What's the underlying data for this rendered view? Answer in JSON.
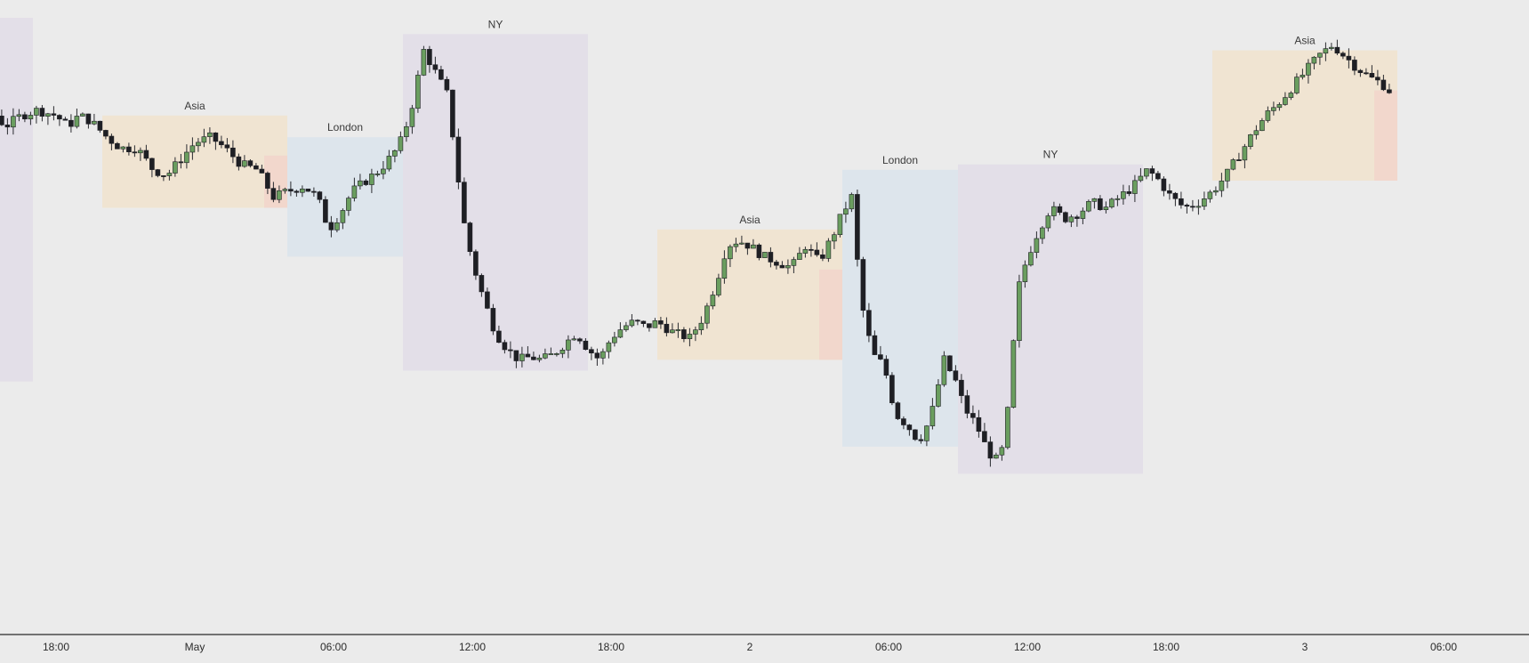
{
  "chart_data": {
    "type": "candlestick",
    "title": "",
    "xlabel": "",
    "ylabel": "",
    "grid": false,
    "ylim": [
      0,
      100
    ],
    "x_ticks": [
      "18:00",
      "May",
      "06:00",
      "12:00",
      "18:00",
      "2",
      "06:00",
      "12:00",
      "18:00",
      "3",
      "06:00"
    ],
    "x_tick_hours": [
      0,
      6,
      12,
      18,
      24,
      30,
      36,
      42,
      48,
      54,
      60
    ],
    "sessions": [
      {
        "name": "",
        "kind": "ny",
        "start_hour": -8.5,
        "end_hour": -1.0,
        "low": 33,
        "high": 100
      },
      {
        "name": "Asia",
        "kind": "asia",
        "start_hour": 2.0,
        "end_hour": 10.0,
        "low": 65,
        "high": 82
      },
      {
        "name": "London",
        "kind": "london",
        "start_hour": 10.0,
        "end_hour": 15.0,
        "low": 56,
        "high": 78
      },
      {
        "name": "NY",
        "kind": "ny",
        "start_hour": 15.0,
        "end_hour": 23.0,
        "low": 35,
        "high": 97
      },
      {
        "name": "Asia",
        "kind": "asia",
        "start_hour": 26.0,
        "end_hour": 34.0,
        "low": 37,
        "high": 61
      },
      {
        "name": "London",
        "kind": "london",
        "start_hour": 34.0,
        "end_hour": 39.0,
        "low": 21,
        "high": 72
      },
      {
        "name": "NY",
        "kind": "ny",
        "start_hour": 39.0,
        "end_hour": 47.0,
        "low": 16,
        "high": 73
      },
      {
        "name": "Asia",
        "kind": "asia",
        "start_hour": 50.0,
        "end_hour": 58.0,
        "low": 70,
        "high": 94
      }
    ],
    "price_path": [
      [
        -8.1,
        40
      ],
      [
        -7.0,
        78
      ],
      [
        -6.0,
        93
      ],
      [
        -5.3,
        97
      ],
      [
        -4.5,
        94
      ],
      [
        -3.7,
        89
      ],
      [
        -3.0,
        84
      ],
      [
        -2.2,
        80
      ],
      [
        -1.5,
        82
      ],
      [
        -0.8,
        83
      ],
      [
        0.0,
        82
      ],
      [
        0.5,
        80
      ],
      [
        1.0,
        82
      ],
      [
        1.5,
        81
      ],
      [
        2.2,
        78
      ],
      [
        2.8,
        76
      ],
      [
        3.5,
        76
      ],
      [
        4.2,
        72
      ],
      [
        4.8,
        71
      ],
      [
        5.4,
        74
      ],
      [
        6.0,
        77
      ],
      [
        6.7,
        78
      ],
      [
        7.3,
        76
      ],
      [
        8.0,
        73
      ],
      [
        8.7,
        72
      ],
      [
        9.4,
        67
      ],
      [
        10.0,
        68
      ],
      [
        10.7,
        69
      ],
      [
        11.3,
        67
      ],
      [
        11.8,
        61
      ],
      [
        12.3,
        64
      ],
      [
        12.8,
        68
      ],
      [
        13.4,
        70
      ],
      [
        14.0,
        72
      ],
      [
        14.6,
        75
      ],
      [
        15.0,
        78
      ],
      [
        15.4,
        84
      ],
      [
        15.9,
        94
      ],
      [
        16.4,
        90
      ],
      [
        16.9,
        86
      ],
      [
        17.2,
        77
      ],
      [
        17.6,
        63
      ],
      [
        18.0,
        55
      ],
      [
        18.5,
        48
      ],
      [
        19.0,
        42
      ],
      [
        19.5,
        39
      ],
      [
        20.0,
        37
      ],
      [
        20.5,
        37.5
      ],
      [
        21.0,
        37
      ],
      [
        21.5,
        38
      ],
      [
        22.0,
        40
      ],
      [
        22.5,
        42
      ],
      [
        23.0,
        39
      ],
      [
        23.5,
        37
      ],
      [
        24.0,
        41
      ],
      [
        24.5,
        43
      ],
      [
        25.0,
        44
      ],
      [
        25.5,
        43
      ],
      [
        26.0,
        44
      ],
      [
        26.7,
        42
      ],
      [
        27.4,
        41
      ],
      [
        28.0,
        45
      ],
      [
        28.6,
        52
      ],
      [
        29.0,
        58
      ],
      [
        29.5,
        59
      ],
      [
        30.0,
        58
      ],
      [
        30.6,
        56
      ],
      [
        31.2,
        55
      ],
      [
        31.8,
        54
      ],
      [
        32.4,
        58
      ],
      [
        33.0,
        55
      ],
      [
        33.6,
        60
      ],
      [
        34.0,
        64
      ],
      [
        34.4,
        67
      ],
      [
        34.8,
        48
      ],
      [
        35.3,
        38
      ],
      [
        35.8,
        36
      ],
      [
        36.3,
        27
      ],
      [
        36.8,
        25
      ],
      [
        37.3,
        22
      ],
      [
        37.8,
        26
      ],
      [
        38.4,
        37
      ],
      [
        38.9,
        33
      ],
      [
        39.3,
        28
      ],
      [
        39.8,
        25
      ],
      [
        40.3,
        20
      ],
      [
        40.8,
        18
      ],
      [
        41.1,
        25
      ],
      [
        41.6,
        50
      ],
      [
        42.0,
        56
      ],
      [
        42.5,
        61
      ],
      [
        43.0,
        65
      ],
      [
        43.6,
        63
      ],
      [
        44.2,
        64
      ],
      [
        44.8,
        66
      ],
      [
        45.4,
        65
      ],
      [
        46.0,
        67
      ],
      [
        46.6,
        69
      ],
      [
        47.2,
        72
      ],
      [
        47.7,
        70
      ],
      [
        48.2,
        67
      ],
      [
        48.8,
        65
      ],
      [
        49.4,
        66
      ],
      [
        50.0,
        68
      ],
      [
        50.6,
        71
      ],
      [
        51.2,
        75
      ],
      [
        51.8,
        79
      ],
      [
        52.3,
        82
      ],
      [
        52.8,
        84
      ],
      [
        53.4,
        87
      ],
      [
        54.0,
        90
      ],
      [
        54.6,
        93
      ],
      [
        55.2,
        95
      ],
      [
        55.7,
        93
      ],
      [
        56.2,
        91
      ],
      [
        56.8,
        89
      ],
      [
        57.3,
        88
      ],
      [
        57.8,
        86
      ]
    ]
  },
  "colors": {
    "background": "#ebebeb",
    "bull_candle": "#6a9e5f",
    "bear_candle": "#1e1f24",
    "wick": "#2a2b30",
    "axis_line": "#2b2b2b",
    "axis_text": "#2b2b2b",
    "session_label": "#3a3a3a",
    "asia_fill": "#f0e4d2",
    "asia_tail_fill": "#f2d7cc",
    "london_fill": "#dde5ec",
    "ny_fill": "#e3dfe8"
  }
}
